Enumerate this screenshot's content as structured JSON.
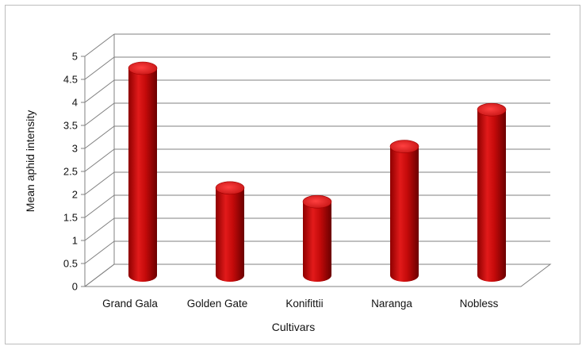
{
  "chart_data": {
    "type": "bar",
    "style": "3d-cylinder",
    "categories": [
      "Grand Gala",
      "Golden Gate",
      "Konifittii",
      "Naranga",
      "Nobless"
    ],
    "values": [
      4.5,
      1.9,
      1.6,
      2.8,
      3.6
    ],
    "ylim": [
      0,
      5
    ],
    "yticks": [
      0,
      0.5,
      1,
      1.5,
      2,
      2.5,
      3,
      3.5,
      4,
      4.5,
      5
    ],
    "xlabel": "Cultivars",
    "ylabel": "Mean aphid intensity",
    "grid": true,
    "legend": "none",
    "bar_color": "#c00000"
  }
}
